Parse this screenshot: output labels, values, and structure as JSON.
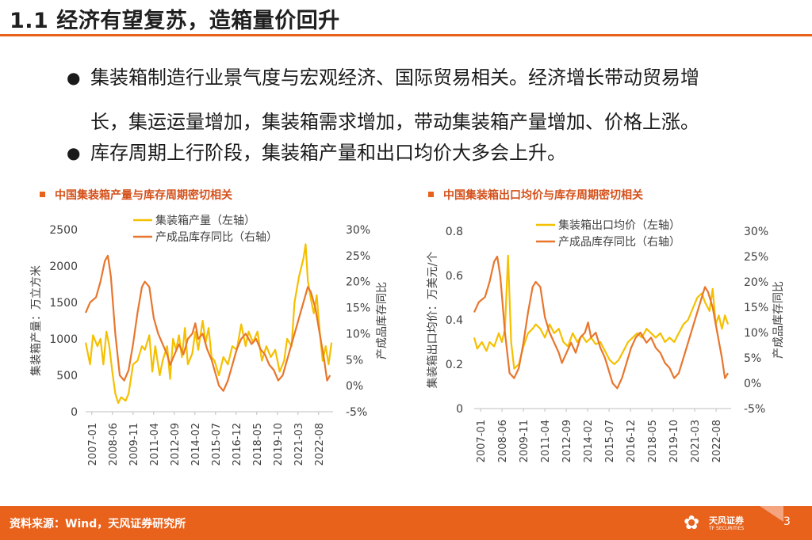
{
  "header": {
    "title": "1.1 经济有望复苏，造箱量价回升"
  },
  "bullets": [
    {
      "line1": "集装箱制造行业景气度与宏观经济、国际贸易相关。经济增长带动贸易增",
      "line2": "长，集运运量增加，集装箱需求增加，带动集装箱产量增加、价格上涨。"
    },
    {
      "line1": "库存周期上行阶段，集装箱产量和出口均价大多会上升。"
    }
  ],
  "colors": {
    "accent": "#e8621c",
    "series_left": "#f5c000",
    "series_right": "#e8762d"
  },
  "chart_data": [
    {
      "type": "line",
      "title": "中国集装箱产量与库存周期密切相关",
      "ylabel": "集装箱产量：万立方米",
      "y2label": "产成品库存同比",
      "ylim": [
        0,
        2500
      ],
      "y2lim": [
        -5,
        30
      ],
      "yticks": [
        0,
        500,
        1000,
        1500,
        2000,
        2500
      ],
      "y2ticks": [
        "-5%",
        "0%",
        "5%",
        "10%",
        "15%",
        "20%",
        "25%",
        "30%"
      ],
      "xticks": [
        "2007-01",
        "2008-06",
        "2009-11",
        "2011-04",
        "2012-09",
        "2014-02",
        "2015-07",
        "2016-12",
        "2018-05",
        "2019-10",
        "2021-03",
        "2022-08"
      ],
      "x_range": [
        2007.0,
        2023.7
      ],
      "legend": [
        "集装箱产量（左轴）",
        "产成品库存同比（右轴）"
      ],
      "series": [
        {
          "name": "集装箱产量（左轴）",
          "axis": "left",
          "points": [
            [
              2007.0,
              950
            ],
            [
              2007.3,
              650
            ],
            [
              2007.5,
              1050
            ],
            [
              2007.8,
              900
            ],
            [
              2008.0,
              1000
            ],
            [
              2008.2,
              650
            ],
            [
              2008.4,
              1100
            ],
            [
              2008.6,
              900
            ],
            [
              2008.8,
              550
            ],
            [
              2009.0,
              250
            ],
            [
              2009.2,
              120
            ],
            [
              2009.4,
              200
            ],
            [
              2009.7,
              150
            ],
            [
              2009.9,
              250
            ],
            [
              2010.2,
              650
            ],
            [
              2010.5,
              700
            ],
            [
              2010.8,
              900
            ],
            [
              2011.0,
              850
            ],
            [
              2011.3,
              1050
            ],
            [
              2011.5,
              550
            ],
            [
              2011.7,
              900
            ],
            [
              2012.0,
              500
            ],
            [
              2012.2,
              700
            ],
            [
              2012.5,
              900
            ],
            [
              2012.7,
              450
            ],
            [
              2012.9,
              1000
            ],
            [
              2013.1,
              850
            ],
            [
              2013.3,
              1050
            ],
            [
              2013.5,
              750
            ],
            [
              2013.7,
              1150
            ],
            [
              2013.9,
              650
            ],
            [
              2014.2,
              800
            ],
            [
              2014.4,
              1100
            ],
            [
              2014.6,
              850
            ],
            [
              2014.9,
              1250
            ],
            [
              2015.1,
              950
            ],
            [
              2015.3,
              1150
            ],
            [
              2015.5,
              750
            ],
            [
              2015.7,
              700
            ],
            [
              2016.0,
              500
            ],
            [
              2016.3,
              750
            ],
            [
              2016.6,
              650
            ],
            [
              2016.9,
              900
            ],
            [
              2017.2,
              850
            ],
            [
              2017.5,
              1200
            ],
            [
              2017.8,
              900
            ],
            [
              2018.0,
              1100
            ],
            [
              2018.3,
              950
            ],
            [
              2018.6,
              1100
            ],
            [
              2018.9,
              700
            ],
            [
              2019.2,
              900
            ],
            [
              2019.5,
              750
            ],
            [
              2019.8,
              850
            ],
            [
              2020.1,
              550
            ],
            [
              2020.4,
              700
            ],
            [
              2020.6,
              1000
            ],
            [
              2020.9,
              900
            ],
            [
              2021.1,
              1500
            ],
            [
              2021.4,
              1850
            ],
            [
              2021.7,
              2100
            ],
            [
              2021.85,
              2300
            ],
            [
              2022.0,
              1800
            ],
            [
              2022.2,
              1550
            ],
            [
              2022.4,
              1350
            ],
            [
              2022.6,
              1600
            ],
            [
              2022.8,
              1100
            ],
            [
              2023.0,
              700
            ],
            [
              2023.2,
              900
            ],
            [
              2023.4,
              650
            ],
            [
              2023.6,
              950
            ]
          ]
        },
        {
          "name": "产成品库存同比（右轴）",
          "axis": "right",
          "points": [
            [
              2007.0,
              14
            ],
            [
              2007.3,
              16
            ],
            [
              2007.7,
              17
            ],
            [
              2008.0,
              20
            ],
            [
              2008.3,
              24
            ],
            [
              2008.5,
              25
            ],
            [
              2008.7,
              21
            ],
            [
              2009.0,
              10
            ],
            [
              2009.3,
              2
            ],
            [
              2009.6,
              1
            ],
            [
              2009.9,
              3
            ],
            [
              2010.2,
              8
            ],
            [
              2010.5,
              14
            ],
            [
              2010.8,
              19
            ],
            [
              2011.0,
              20
            ],
            [
              2011.3,
              19
            ],
            [
              2011.6,
              13
            ],
            [
              2011.9,
              10
            ],
            [
              2012.2,
              8
            ],
            [
              2012.5,
              6
            ],
            [
              2012.7,
              4
            ],
            [
              2013.0,
              6
            ],
            [
              2013.3,
              8
            ],
            [
              2013.6,
              6
            ],
            [
              2013.9,
              9
            ],
            [
              2014.2,
              10
            ],
            [
              2014.4,
              12
            ],
            [
              2014.6,
              9
            ],
            [
              2014.9,
              10
            ],
            [
              2015.2,
              7
            ],
            [
              2015.5,
              5
            ],
            [
              2015.8,
              2
            ],
            [
              2016.0,
              0
            ],
            [
              2016.3,
              -1
            ],
            [
              2016.6,
              1
            ],
            [
              2016.9,
              4
            ],
            [
              2017.2,
              7
            ],
            [
              2017.5,
              9
            ],
            [
              2017.8,
              10
            ],
            [
              2018.2,
              8
            ],
            [
              2018.5,
              9
            ],
            [
              2018.8,
              7
            ],
            [
              2019.1,
              6
            ],
            [
              2019.4,
              4
            ],
            [
              2019.7,
              3
            ],
            [
              2020.0,
              1
            ],
            [
              2020.3,
              2
            ],
            [
              2020.6,
              5
            ],
            [
              2020.9,
              8
            ],
            [
              2021.2,
              11
            ],
            [
              2021.5,
              14
            ],
            [
              2021.8,
              17
            ],
            [
              2022.0,
              19
            ],
            [
              2022.2,
              18
            ],
            [
              2022.5,
              15
            ],
            [
              2022.8,
              10
            ],
            [
              2023.1,
              5
            ],
            [
              2023.3,
              1
            ],
            [
              2023.5,
              2
            ]
          ]
        }
      ]
    },
    {
      "type": "line",
      "title": "中国集装箱出口均价与库存周期密切相关",
      "ylabel": "集装箱出口均价：万美元/个",
      "y2label": "产成品库存同比",
      "ylim": [
        0,
        0.8
      ],
      "y2lim": [
        -5,
        30
      ],
      "yticks": [
        "0",
        "0.2",
        "0.4",
        "0.6",
        "0.8"
      ],
      "y2ticks": [
        "-5%",
        "0%",
        "5%",
        "10%",
        "15%",
        "20%",
        "25%",
        "30%"
      ],
      "xticks": [
        "2007-01",
        "2008-06",
        "2009-11",
        "2011-04",
        "2012-09",
        "2014-02",
        "2015-07",
        "2016-12",
        "2018-05",
        "2019-10",
        "2021-03",
        "2022-08"
      ],
      "x_range": [
        2007.0,
        2023.7
      ],
      "legend": [
        "集装箱出口均价（左轴）",
        "产成品库存同比（右轴）"
      ],
      "series": [
        {
          "name": "集装箱出口均价（左轴）",
          "axis": "left",
          "points": [
            [
              2007.0,
              0.32
            ],
            [
              2007.2,
              0.27
            ],
            [
              2007.5,
              0.3
            ],
            [
              2007.8,
              0.26
            ],
            [
              2008.0,
              0.3
            ],
            [
              2008.3,
              0.28
            ],
            [
              2008.6,
              0.34
            ],
            [
              2008.8,
              0.3
            ],
            [
              2009.0,
              0.36
            ],
            [
              2009.2,
              0.69
            ],
            [
              2009.4,
              0.3
            ],
            [
              2009.6,
              0.18
            ],
            [
              2009.9,
              0.2
            ],
            [
              2010.2,
              0.28
            ],
            [
              2010.5,
              0.34
            ],
            [
              2010.8,
              0.36
            ],
            [
              2011.0,
              0.38
            ],
            [
              2011.3,
              0.36
            ],
            [
              2011.6,
              0.32
            ],
            [
              2011.9,
              0.38
            ],
            [
              2012.2,
              0.34
            ],
            [
              2012.5,
              0.36
            ],
            [
              2012.8,
              0.3
            ],
            [
              2013.1,
              0.28
            ],
            [
              2013.4,
              0.34
            ],
            [
              2013.7,
              0.3
            ],
            [
              2014.0,
              0.33
            ],
            [
              2014.3,
              0.3
            ],
            [
              2014.6,
              0.32
            ],
            [
              2014.9,
              0.29
            ],
            [
              2015.2,
              0.3
            ],
            [
              2015.5,
              0.26
            ],
            [
              2015.8,
              0.22
            ],
            [
              2016.1,
              0.2
            ],
            [
              2016.4,
              0.22
            ],
            [
              2016.7,
              0.26
            ],
            [
              2017.0,
              0.3
            ],
            [
              2017.3,
              0.32
            ],
            [
              2017.6,
              0.34
            ],
            [
              2017.9,
              0.32
            ],
            [
              2018.2,
              0.36
            ],
            [
              2018.5,
              0.34
            ],
            [
              2018.8,
              0.32
            ],
            [
              2019.1,
              0.34
            ],
            [
              2019.4,
              0.3
            ],
            [
              2019.7,
              0.32
            ],
            [
              2020.0,
              0.3
            ],
            [
              2020.3,
              0.34
            ],
            [
              2020.6,
              0.38
            ],
            [
              2020.9,
              0.4
            ],
            [
              2021.2,
              0.45
            ],
            [
              2021.5,
              0.5
            ],
            [
              2021.8,
              0.52
            ],
            [
              2022.0,
              0.48
            ],
            [
              2022.3,
              0.44
            ],
            [
              2022.5,
              0.54
            ],
            [
              2022.7,
              0.38
            ],
            [
              2022.9,
              0.42
            ],
            [
              2023.1,
              0.36
            ],
            [
              2023.3,
              0.42
            ],
            [
              2023.5,
              0.38
            ]
          ]
        },
        {
          "name": "产成品库存同比（右轴）",
          "axis": "right",
          "points": [
            [
              2007.0,
              14
            ],
            [
              2007.3,
              16
            ],
            [
              2007.7,
              17
            ],
            [
              2008.0,
              20
            ],
            [
              2008.3,
              24
            ],
            [
              2008.5,
              25
            ],
            [
              2008.7,
              21
            ],
            [
              2009.0,
              10
            ],
            [
              2009.3,
              2
            ],
            [
              2009.6,
              1
            ],
            [
              2009.9,
              3
            ],
            [
              2010.2,
              8
            ],
            [
              2010.5,
              14
            ],
            [
              2010.8,
              19
            ],
            [
              2011.0,
              20
            ],
            [
              2011.3,
              19
            ],
            [
              2011.6,
              13
            ],
            [
              2011.9,
              10
            ],
            [
              2012.2,
              8
            ],
            [
              2012.5,
              6
            ],
            [
              2012.7,
              4
            ],
            [
              2013.0,
              6
            ],
            [
              2013.3,
              8
            ],
            [
              2013.6,
              6
            ],
            [
              2013.9,
              9
            ],
            [
              2014.2,
              10
            ],
            [
              2014.4,
              12
            ],
            [
              2014.6,
              9
            ],
            [
              2014.9,
              10
            ],
            [
              2015.2,
              7
            ],
            [
              2015.5,
              5
            ],
            [
              2015.8,
              2
            ],
            [
              2016.0,
              0
            ],
            [
              2016.3,
              -1
            ],
            [
              2016.6,
              1
            ],
            [
              2016.9,
              4
            ],
            [
              2017.2,
              7
            ],
            [
              2017.5,
              9
            ],
            [
              2017.8,
              10
            ],
            [
              2018.2,
              8
            ],
            [
              2018.5,
              9
            ],
            [
              2018.8,
              7
            ],
            [
              2019.1,
              6
            ],
            [
              2019.4,
              4
            ],
            [
              2019.7,
              3
            ],
            [
              2020.0,
              1
            ],
            [
              2020.3,
              2
            ],
            [
              2020.6,
              5
            ],
            [
              2020.9,
              8
            ],
            [
              2021.2,
              11
            ],
            [
              2021.5,
              14
            ],
            [
              2021.8,
              17
            ],
            [
              2022.0,
              19
            ],
            [
              2022.2,
              18
            ],
            [
              2022.5,
              15
            ],
            [
              2022.8,
              10
            ],
            [
              2023.1,
              5
            ],
            [
              2023.3,
              1
            ],
            [
              2023.5,
              2
            ]
          ]
        }
      ]
    }
  ],
  "footer": {
    "source": "资料来源：Wind，天风证券研究所",
    "logo_cn": "天风证券",
    "logo_en": "TF SECURITIES",
    "page_number": "3"
  }
}
